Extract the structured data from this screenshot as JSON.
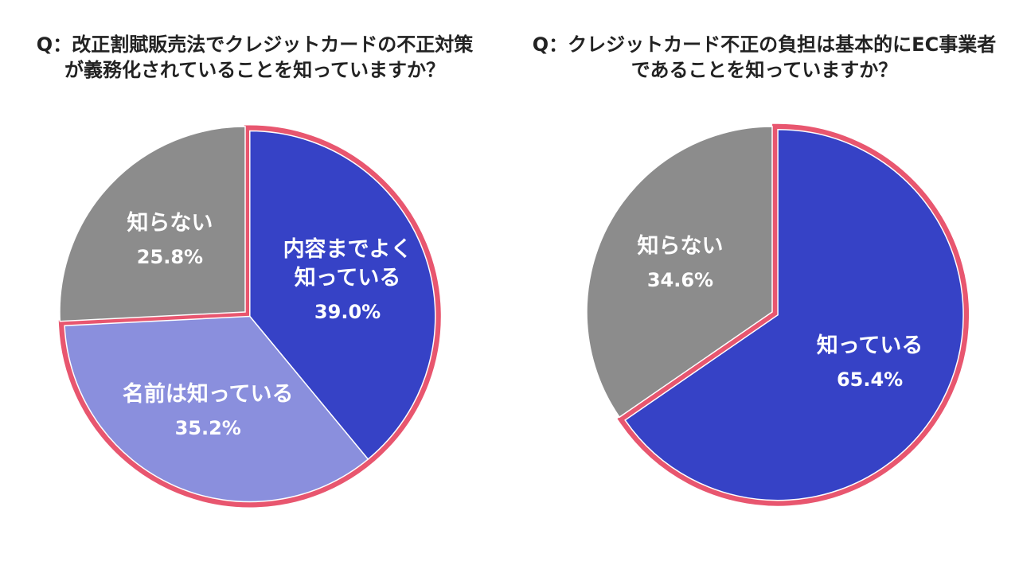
{
  "chart_data": [
    {
      "type": "pie",
      "title": "Q：改正割賦販売法でクレジットカードの不正対策\nが義務化されていることを知っていますか？",
      "categories": [
        "内容までよく\n知っている",
        "名前は知っている",
        "知らない"
      ],
      "values": [
        39.0,
        35.2,
        25.8
      ],
      "value_labels": [
        "39.0%",
        "35.2%",
        "25.8%"
      ],
      "colors": [
        "#3642c6",
        "#8a8fdd",
        "#8c8c8c"
      ],
      "highlight": [
        true,
        true,
        false
      ],
      "highlight_color": "#e8566f"
    },
    {
      "type": "pie",
      "title": "Q：クレジットカード不正の負担は基本的にEC事業者\nであることを知っていますか？",
      "categories": [
        "知っている",
        "知らない"
      ],
      "values": [
        65.4,
        34.6
      ],
      "value_labels": [
        "65.4%",
        "34.6%"
      ],
      "colors": [
        "#3642c6",
        "#8c8c8c"
      ],
      "highlight": [
        true,
        false
      ],
      "highlight_color": "#e8566f"
    }
  ]
}
